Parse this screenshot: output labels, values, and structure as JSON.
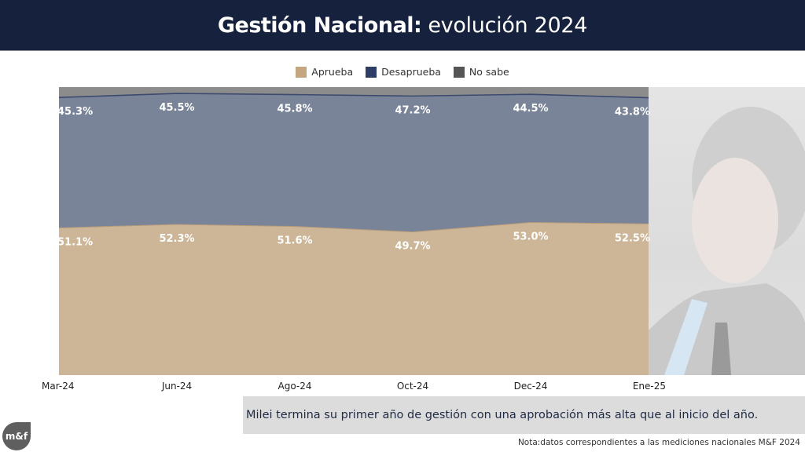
{
  "header": {
    "title_bold": "Gestión Nacional:",
    "title_light": "evolución 2024"
  },
  "legend": [
    {
      "label": "Aprueba",
      "color": "#c4a67f"
    },
    {
      "label": "Desaprueba",
      "color": "#2e3e66"
    },
    {
      "label": "No sabe",
      "color": "#555555"
    }
  ],
  "chart_data": {
    "type": "area",
    "stacked": true,
    "normalized_to_percent": true,
    "categories": [
      "Mar-24",
      "Jun-24",
      "Ago-24",
      "Oct-24",
      "Dec-24",
      "Ene-25"
    ],
    "series": [
      {
        "name": "Aprueba",
        "values": [
          51.1,
          52.3,
          51.6,
          49.7,
          53.0,
          52.5
        ],
        "color": "#cdb597"
      },
      {
        "name": "Desaprueba",
        "values": [
          45.3,
          45.5,
          45.8,
          47.2,
          44.5,
          43.8
        ],
        "color": "#7a8499"
      },
      {
        "name": "No sabe",
        "values": [
          3.6,
          2.2,
          2.6,
          3.1,
          2.5,
          3.7
        ],
        "color": "#8c8c8c"
      }
    ],
    "data_labels": {
      "Aprueba": [
        "51.1%",
        "52.3%",
        "51.6%",
        "49.7%",
        "53.0%",
        "52.5%"
      ],
      "Desaprueba": [
        "45.3%",
        "45.5%",
        "45.8%",
        "47.2%",
        "44.5%",
        "43.8%"
      ]
    },
    "ylim": [
      0,
      100
    ],
    "grid": false,
    "legend_position": "top-center",
    "title": "Gestión Nacional: evolución 2024",
    "xlabel": "",
    "ylabel": ""
  },
  "callout": {
    "text": "Milei termina su primer año de gestión con una aprobación más alta que al inicio del año."
  },
  "note": {
    "text": "Nota:datos correspondientes a las mediciones nacionales M&F  2024"
  },
  "logo": {
    "text": "m&f"
  },
  "photo": {
    "description": "faded portrait photo"
  }
}
